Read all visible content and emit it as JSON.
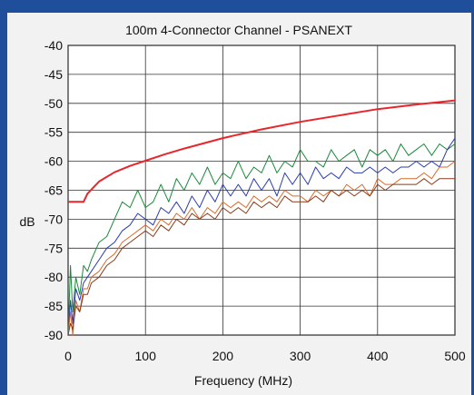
{
  "chart_data": {
    "type": "line",
    "title": "100m 4-Connector Channel  - PSANEXT",
    "xlabel": "Frequency (MHz)",
    "ylabel": "dB",
    "xlim": [
      0,
      500
    ],
    "ylim": [
      -90,
      -40
    ],
    "x_ticks": [
      "0",
      "100",
      "200",
      "300",
      "400",
      "500"
    ],
    "y_ticks": [
      "-40",
      "-45",
      "-50",
      "-55",
      "-60",
      "-65",
      "-70",
      "-75",
      "-80",
      "-85",
      "-90"
    ],
    "grid": true,
    "legend": "none",
    "series": [
      {
        "color": "#e8262b",
        "role": "limit",
        "x": [
          0,
          20,
          25,
          40,
          60,
          80,
          100,
          125,
          150,
          200,
          250,
          300,
          350,
          400,
          450,
          500
        ],
        "y": [
          -67,
          -67,
          -65.6,
          -63.5,
          -61.9,
          -60.8,
          -59.9,
          -58.8,
          -57.8,
          -56.0,
          -54.5,
          -53.2,
          -52.1,
          -51.0,
          -50.2,
          -49.5
        ]
      },
      {
        "color": "#1a8a3a",
        "x": [
          0,
          3,
          6,
          10,
          15,
          20,
          25,
          30,
          40,
          50,
          60,
          70,
          80,
          90,
          100,
          110,
          120,
          130,
          140,
          150,
          160,
          170,
          180,
          190,
          200,
          210,
          220,
          230,
          240,
          250,
          260,
          270,
          280,
          290,
          300,
          310,
          320,
          330,
          340,
          350,
          360,
          370,
          380,
          390,
          400,
          410,
          420,
          430,
          440,
          450,
          460,
          470,
          480,
          490,
          500
        ],
        "y": [
          -90,
          -78,
          -86,
          -80,
          -83,
          -78,
          -79,
          -77,
          -74,
          -73,
          -70,
          -67,
          -68,
          -65,
          -68,
          -67,
          -64,
          -67,
          -63,
          -65,
          -62,
          -64,
          -61,
          -64,
          -62,
          -63,
          -60,
          -63,
          -61,
          -62,
          -59,
          -62,
          -60,
          -61,
          -58,
          -60,
          -60,
          -61,
          -58,
          -60,
          -59,
          -58,
          -61,
          -58,
          -59,
          -58,
          -60,
          -57,
          -59,
          -58,
          -57,
          -59,
          -57,
          -58,
          -57
        ]
      },
      {
        "color": "#2a3bb0",
        "x": [
          0,
          3,
          6,
          10,
          15,
          20,
          25,
          30,
          40,
          50,
          60,
          70,
          80,
          90,
          100,
          110,
          120,
          130,
          140,
          150,
          160,
          170,
          180,
          190,
          200,
          210,
          220,
          230,
          240,
          250,
          260,
          270,
          280,
          290,
          300,
          310,
          320,
          330,
          340,
          350,
          360,
          370,
          380,
          390,
          400,
          410,
          420,
          430,
          440,
          450,
          460,
          470,
          480,
          490,
          500
        ],
        "y": [
          -90,
          -84,
          -88,
          -82,
          -84,
          -81,
          -80,
          -79,
          -77,
          -75,
          -74,
          -72,
          -71,
          -69,
          -70,
          -71,
          -68,
          -69,
          -67,
          -69,
          -66,
          -68,
          -65,
          -67,
          -64,
          -66,
          -64,
          -66,
          -63,
          -65,
          -63,
          -66,
          -62,
          -64,
          -62,
          -64,
          -61,
          -63,
          -62,
          -63,
          -61,
          -62,
          -62,
          -61,
          -62,
          -61,
          -62,
          -61,
          -61,
          -60,
          -61,
          -60,
          -61,
          -58,
          -56
        ]
      },
      {
        "color": "#d96a2a",
        "x": [
          0,
          3,
          6,
          10,
          15,
          20,
          25,
          30,
          40,
          50,
          60,
          70,
          80,
          90,
          100,
          110,
          120,
          130,
          140,
          150,
          160,
          170,
          180,
          190,
          200,
          210,
          220,
          230,
          240,
          250,
          260,
          270,
          280,
          290,
          300,
          310,
          320,
          330,
          340,
          350,
          360,
          370,
          380,
          390,
          400,
          410,
          420,
          430,
          440,
          450,
          460,
          470,
          480,
          490,
          500
        ],
        "y": [
          -90,
          -86,
          -90,
          -84,
          -86,
          -82,
          -82,
          -80,
          -79,
          -77,
          -76,
          -74,
          -73,
          -72,
          -71,
          -72,
          -70,
          -71,
          -69,
          -70,
          -68,
          -70,
          -68,
          -69,
          -67,
          -68,
          -67,
          -68,
          -66,
          -67,
          -66,
          -67,
          -65,
          -66,
          -66,
          -67,
          -65,
          -66,
          -65,
          -66,
          -64,
          -65,
          -64,
          -66,
          -63,
          -64,
          -64,
          -63,
          -63,
          -63,
          -62,
          -63,
          -61,
          -61,
          -60
        ]
      },
      {
        "color": "#8a3a1a",
        "x": [
          0,
          3,
          6,
          10,
          15,
          20,
          25,
          30,
          40,
          50,
          60,
          70,
          80,
          90,
          100,
          110,
          120,
          130,
          140,
          150,
          160,
          170,
          180,
          190,
          200,
          210,
          220,
          230,
          240,
          250,
          260,
          270,
          280,
          290,
          300,
          310,
          320,
          330,
          340,
          350,
          360,
          370,
          380,
          390,
          400,
          410,
          420,
          430,
          440,
          450,
          460,
          470,
          480,
          490,
          500
        ],
        "y": [
          -90,
          -88,
          -89,
          -85,
          -86,
          -83,
          -83,
          -81,
          -80,
          -78,
          -77,
          -75,
          -74,
          -73,
          -72,
          -73,
          -71,
          -72,
          -70,
          -71,
          -69,
          -70,
          -69,
          -70,
          -68,
          -69,
          -68,
          -69,
          -67,
          -68,
          -67,
          -68,
          -66,
          -67,
          -67,
          -67,
          -66,
          -67,
          -65,
          -66,
          -65,
          -66,
          -65,
          -66,
          -64,
          -65,
          -64,
          -64,
          -64,
          -64,
          -63,
          -64,
          -63,
          -63,
          -63
        ]
      }
    ]
  }
}
